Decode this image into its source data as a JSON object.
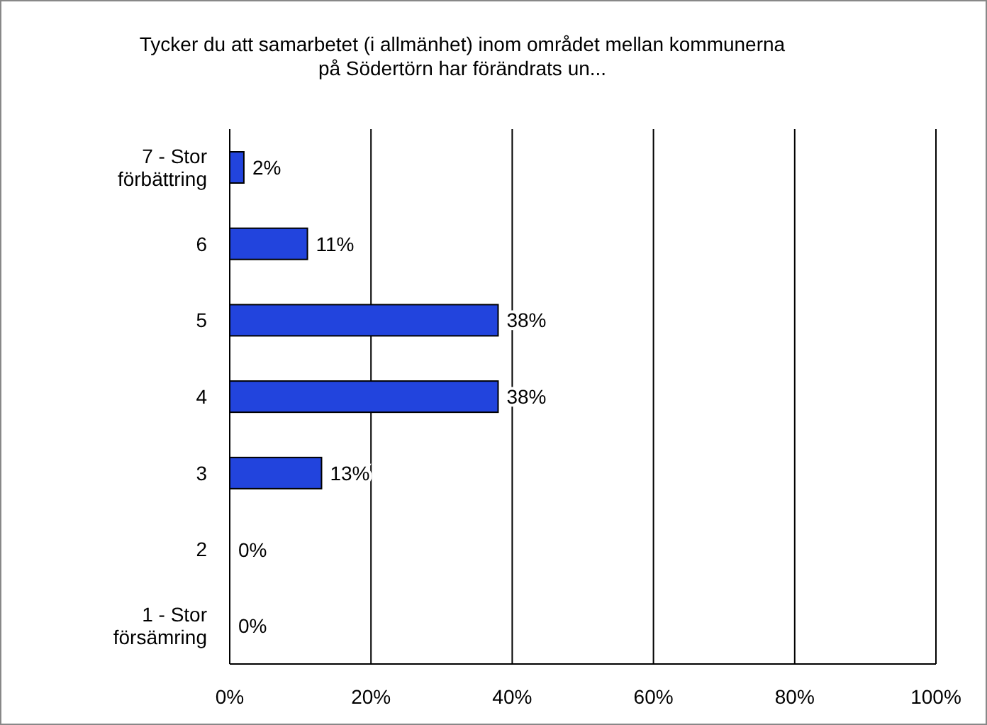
{
  "chart_data": {
    "type": "bar",
    "orientation": "horizontal",
    "title": "Tycker du att samarbetet (i allmänhet) inom området mellan kommunerna på Södertörn har förändrats un...",
    "categories": [
      "7 - Stor förbättring",
      "6",
      "5",
      "4",
      "3",
      "2",
      "1 - Stor försämring"
    ],
    "values": [
      2,
      11,
      38,
      38,
      13,
      0,
      0
    ],
    "color": "#2244dd",
    "value_labels": [
      "2%",
      "11%",
      "38%",
      "38%",
      "13%",
      "0%",
      "0%"
    ],
    "xlim": [
      0,
      100
    ],
    "xticks": [
      {
        "value": 0,
        "label": "0%"
      },
      {
        "value": 20,
        "label": "20%"
      },
      {
        "value": 40,
        "label": "40%"
      },
      {
        "value": 60,
        "label": "60%"
      },
      {
        "value": 80,
        "label": "80%"
      },
      {
        "value": 100,
        "label": "100%"
      }
    ],
    "grid": "x",
    "legend": false
  }
}
